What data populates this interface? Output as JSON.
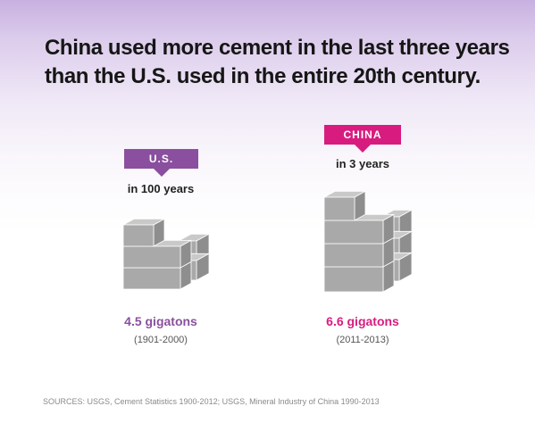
{
  "title_lines": [
    "China used more cement in the last three years",
    "than the U.S. used in the entire 20th century."
  ],
  "chart_data": {
    "type": "bar",
    "title": "China used more cement in the last three years than the U.S. used in the entire 20th century.",
    "categories": [
      "U.S.",
      "CHINA"
    ],
    "values": [
      4.5,
      6.6
    ],
    "unit": "gigatons",
    "series": [
      {
        "name": "U.S.",
        "label": "U.S.",
        "period_text": "in 100 years",
        "value": 4.5,
        "value_text": "4.5 gigatons",
        "range_text": "(1901-2000)",
        "color": "#8a4f9e"
      },
      {
        "name": "CHINA",
        "label": "CHINA",
        "period_text": "in 3 years",
        "value": 6.6,
        "value_text": "6.6 gigatons",
        "range_text": "(2011-2013)",
        "color": "#d81c7f"
      }
    ]
  },
  "colors": {
    "us_accent": "#8a4f9e",
    "china_accent": "#d81c7f",
    "block_front": "#a9a9a9",
    "block_top": "#c9c9c9",
    "block_side": "#8e8e8e"
  },
  "sources": "SOURCES: USGS, Cement Statistics 1900-2012; USGS, Mineral Industry of China 1990-2013"
}
